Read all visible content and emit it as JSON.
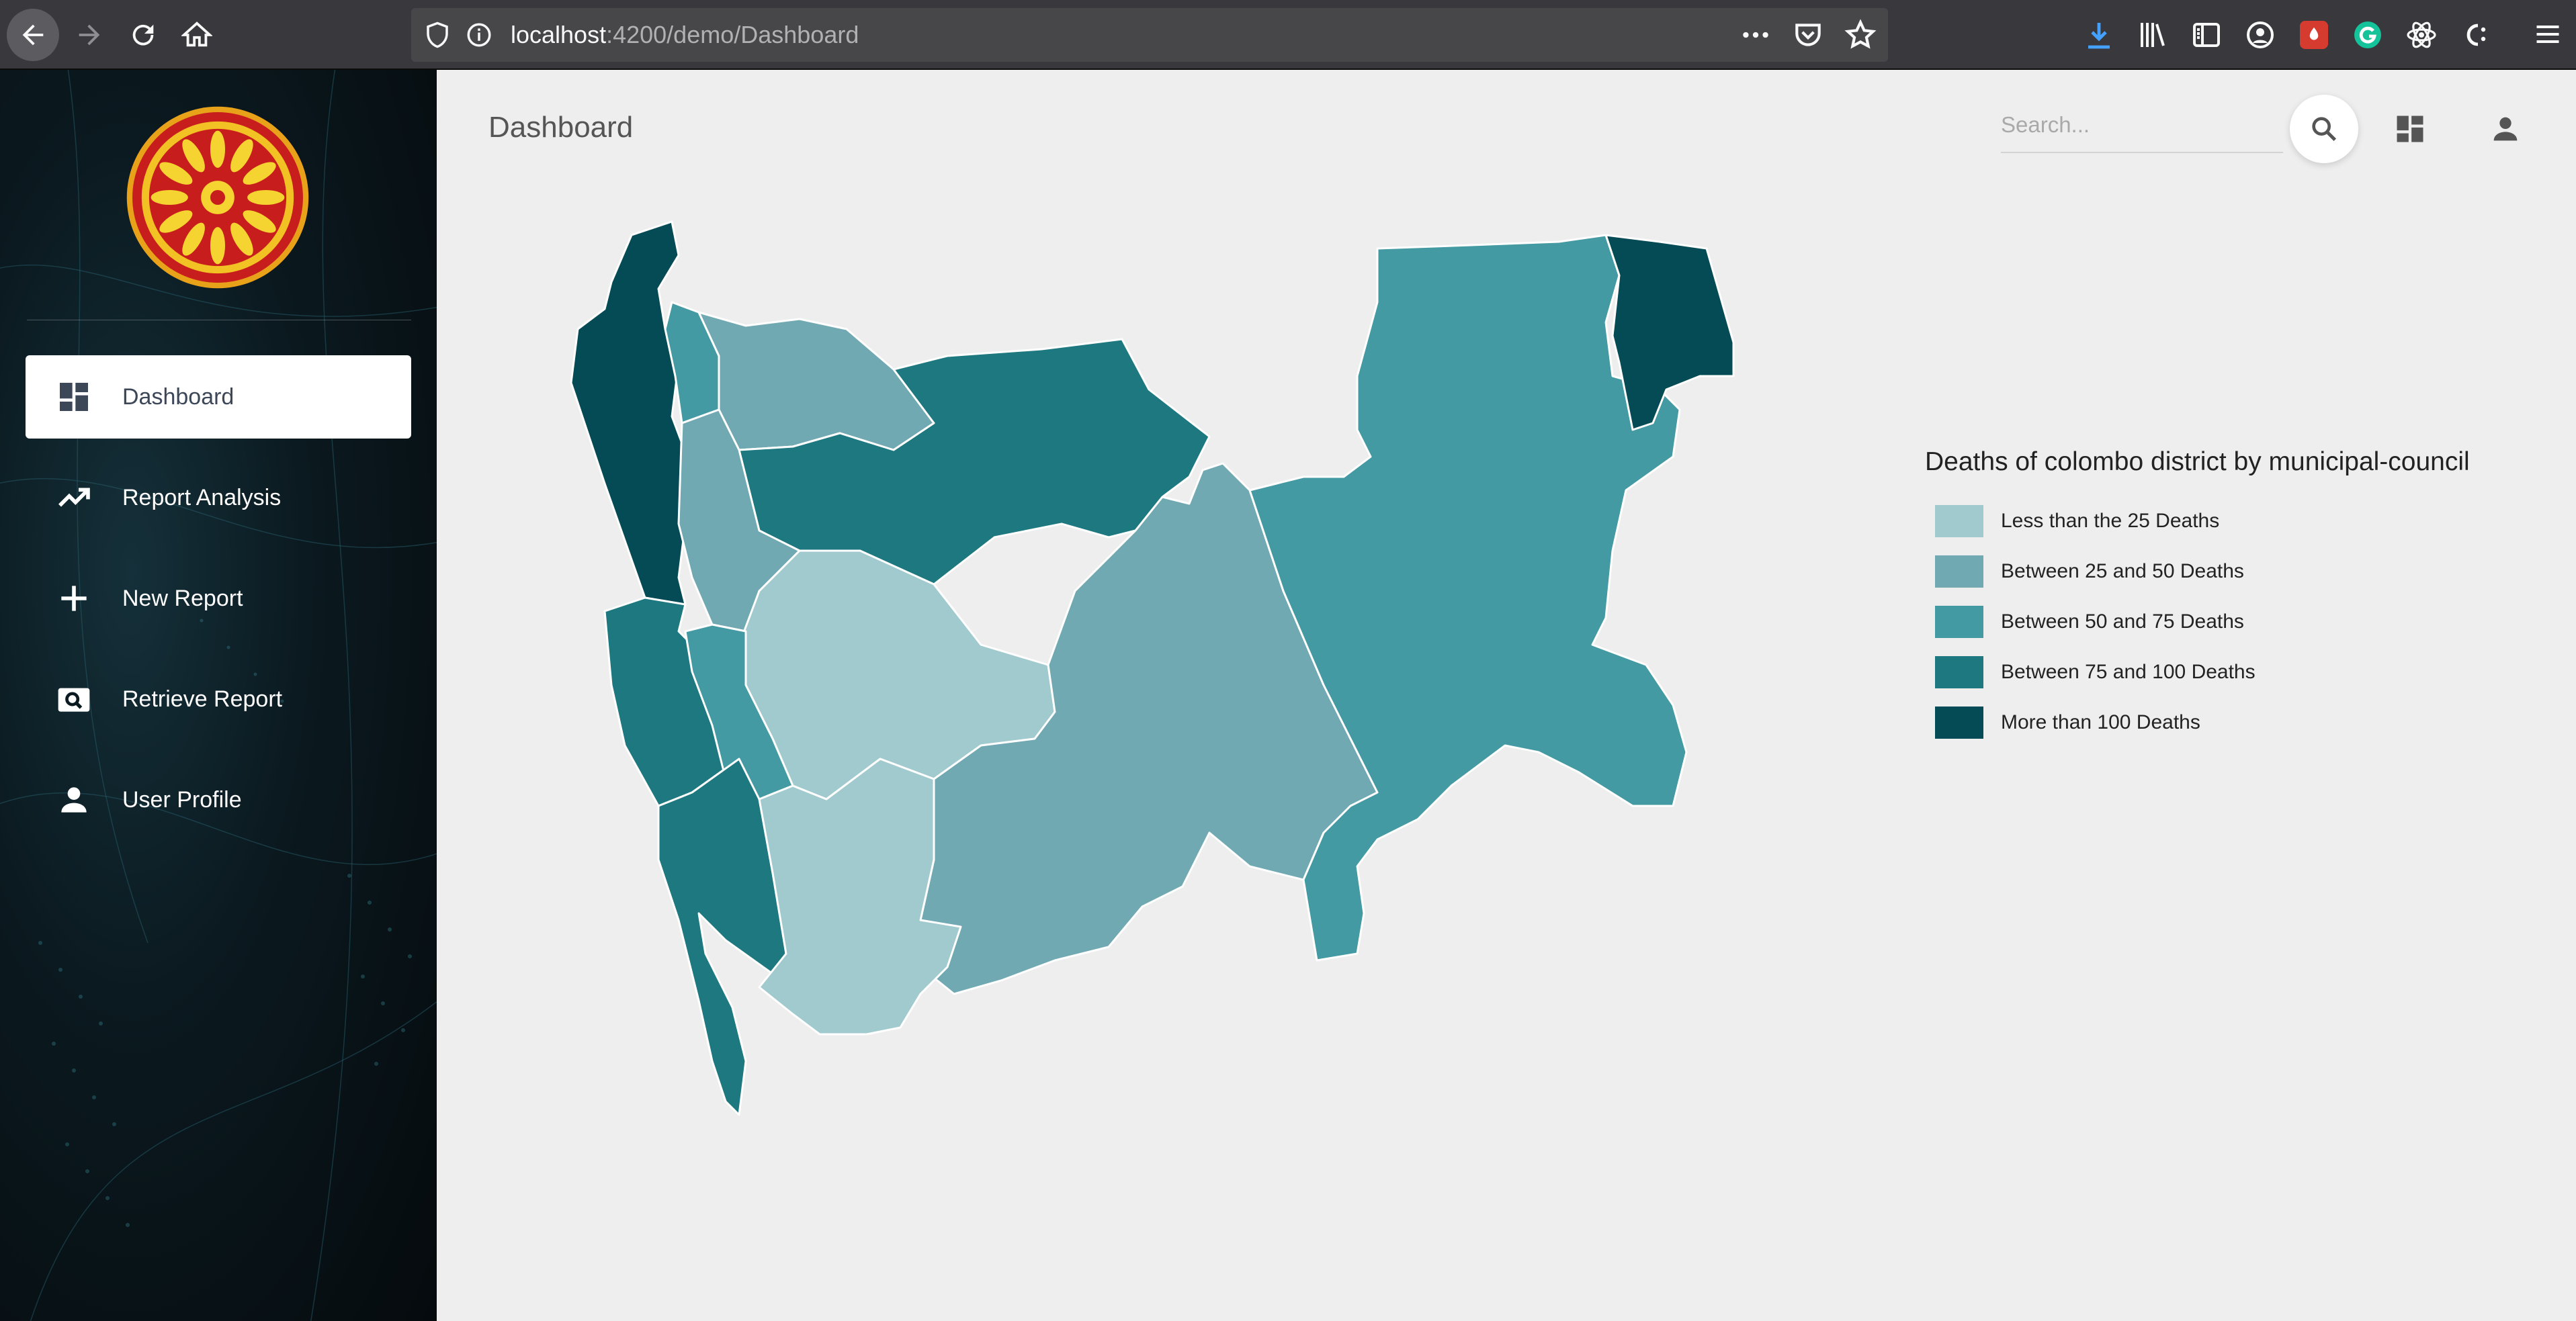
{
  "browser": {
    "url_host": "localhost",
    "url_path": ":4200/demo/Dashboard"
  },
  "sidebar": {
    "items": [
      {
        "label": "Dashboard",
        "icon": "dashboard-icon",
        "active": true
      },
      {
        "label": "Report Analysis",
        "icon": "trending-icon",
        "active": false
      },
      {
        "label": "New Report",
        "icon": "plus-icon",
        "active": false
      },
      {
        "label": "Retrieve Report",
        "icon": "image-search-icon",
        "active": false
      },
      {
        "label": "User Profile",
        "icon": "person-icon",
        "active": false
      }
    ]
  },
  "header": {
    "title": "Dashboard",
    "search_placeholder": "Search..."
  },
  "legend": {
    "title": "Deaths of colombo district by municipal-council",
    "items": [
      {
        "label": "Less than the 25 Deaths",
        "color": "#a1cacf"
      },
      {
        "label": "Between 25 and 50 Deaths",
        "color": "#70a9b1"
      },
      {
        "label": "Between 50 and 75 Deaths",
        "color": "#449aa2"
      },
      {
        "label": "Between 75 and 100 Deaths",
        "color": "#1e7880"
      },
      {
        "label": "More than 100 Deaths",
        "color": "#054b55"
      }
    ]
  },
  "colors": {
    "sidebar_bg": "#0b1a20",
    "active_item_bg": "#ffffff",
    "page_bg": "#eeeeee"
  }
}
